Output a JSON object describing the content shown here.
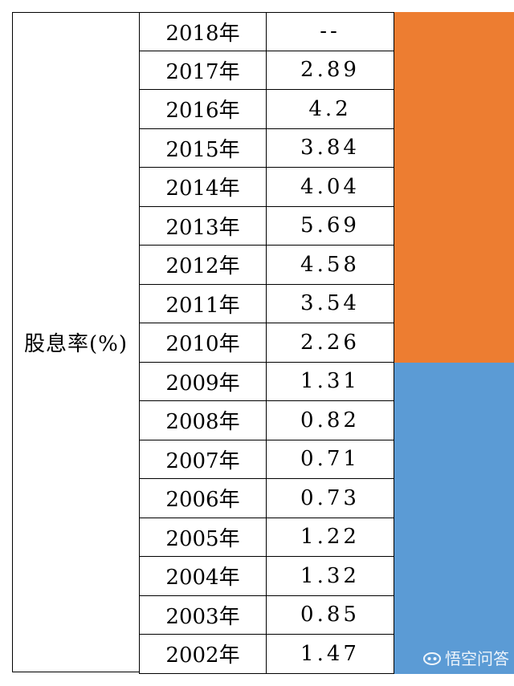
{
  "label": "股息率(%)",
  "rows": [
    {
      "year": "2018年",
      "value": "--"
    },
    {
      "year": "2017年",
      "value": "2.89"
    },
    {
      "year": "2016年",
      "value": "4.2"
    },
    {
      "year": "2015年",
      "value": "3.84"
    },
    {
      "year": "2014年",
      "value": "4.04"
    },
    {
      "year": "2013年",
      "value": "5.69"
    },
    {
      "year": "2012年",
      "value": "4.58"
    },
    {
      "year": "2011年",
      "value": "3.54"
    },
    {
      "year": "2010年",
      "value": "2.26"
    },
    {
      "year": "2009年",
      "value": "1.31"
    },
    {
      "year": "2008年",
      "value": "0.82"
    },
    {
      "year": "2007年",
      "value": "0.71"
    },
    {
      "year": "2006年",
      "value": "0.73"
    },
    {
      "year": "2005年",
      "value": "1.22"
    },
    {
      "year": "2004年",
      "value": "1.32"
    },
    {
      "year": "2003年",
      "value": "0.85"
    },
    {
      "year": "2002年",
      "value": "1.47"
    }
  ],
  "colors": {
    "band_top": "#ED7D31",
    "band_bottom": "#5B9BD5"
  },
  "watermark": {
    "text": "悟空问答",
    "icon": "wukong-logo-icon"
  }
}
